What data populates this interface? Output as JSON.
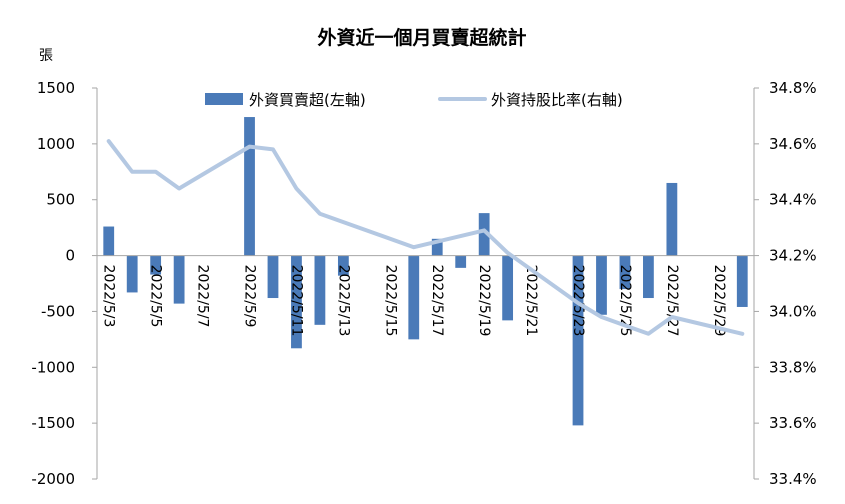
{
  "chart_data": {
    "type": "bar+line",
    "title": "外資近一個月買賣超統計",
    "y_left_unit": "張",
    "y_left_range": [
      -2000,
      1500
    ],
    "y_left_ticks": [
      "1500",
      "1000",
      "500",
      "0",
      "-500",
      "-1000",
      "-1500",
      "-2000"
    ],
    "y_right_range": [
      33.4,
      34.8
    ],
    "y_right_ticks": [
      "34.8%",
      "34.6%",
      "34.4%",
      "34.2%",
      "34.0%",
      "33.8%",
      "33.6%",
      "33.4%"
    ],
    "x_dates": [
      "2022/5/3",
      "2022/5/4",
      "2022/5/5",
      "2022/5/6",
      "2022/5/7",
      "2022/5/8",
      "2022/5/9",
      "2022/5/10",
      "2022/5/11",
      "2022/5/12",
      "2022/5/13",
      "2022/5/14",
      "2022/5/15",
      "2022/5/16",
      "2022/5/17",
      "2022/5/18",
      "2022/5/19",
      "2022/5/20",
      "2022/5/21",
      "2022/5/22",
      "2022/5/23",
      "2022/5/24",
      "2022/5/25",
      "2022/5/26",
      "2022/5/27",
      "2022/5/28",
      "2022/5/29",
      "2022/5/30"
    ],
    "x_tick_labels": [
      "2022/5/3",
      "2022/5/5",
      "2022/5/7",
      "2022/5/9",
      "2022/5/11",
      "2022/5/13",
      "2022/5/15",
      "2022/5/17",
      "2022/5/19",
      "2022/5/21",
      "2022/5/23",
      "2022/5/25",
      "2022/5/27",
      "2022/5/29"
    ],
    "series": [
      {
        "name": "外資買賣超(左軸)",
        "type": "bar",
        "axis": "left",
        "color": "#4a7ab8",
        "points": [
          {
            "date": "2022/5/3",
            "value": 260
          },
          {
            "date": "2022/5/4",
            "value": -330
          },
          {
            "date": "2022/5/5",
            "value": -170
          },
          {
            "date": "2022/5/6",
            "value": -430
          },
          {
            "date": "2022/5/9",
            "value": 1240
          },
          {
            "date": "2022/5/10",
            "value": -380
          },
          {
            "date": "2022/5/11",
            "value": -830
          },
          {
            "date": "2022/5/12",
            "value": -620
          },
          {
            "date": "2022/5/13",
            "value": -180
          },
          {
            "date": "2022/5/16",
            "value": -750
          },
          {
            "date": "2022/5/17",
            "value": 150
          },
          {
            "date": "2022/5/18",
            "value": -110
          },
          {
            "date": "2022/5/19",
            "value": 380
          },
          {
            "date": "2022/5/20",
            "value": -580
          },
          {
            "date": "2022/5/23",
            "value": -1520
          },
          {
            "date": "2022/5/24",
            "value": -530
          },
          {
            "date": "2022/5/25",
            "value": -300
          },
          {
            "date": "2022/5/26",
            "value": -380
          },
          {
            "date": "2022/5/27",
            "value": 650
          },
          {
            "date": "2022/5/30",
            "value": -460
          }
        ]
      },
      {
        "name": "外資持股比率(右軸)",
        "type": "line",
        "axis": "right",
        "color": "#b4c8e2",
        "points": [
          {
            "date": "2022/5/3",
            "value": 34.61
          },
          {
            "date": "2022/5/4",
            "value": 34.5
          },
          {
            "date": "2022/5/5",
            "value": 34.5
          },
          {
            "date": "2022/5/6",
            "value": 34.44
          },
          {
            "date": "2022/5/9",
            "value": 34.59
          },
          {
            "date": "2022/5/10",
            "value": 34.58
          },
          {
            "date": "2022/5/11",
            "value": 34.44
          },
          {
            "date": "2022/5/12",
            "value": 34.35
          },
          {
            "date": "2022/5/16",
            "value": 34.23
          },
          {
            "date": "2022/5/19",
            "value": 34.29
          },
          {
            "date": "2022/5/20",
            "value": 34.21
          },
          {
            "date": "2022/5/23",
            "value": 34.03
          },
          {
            "date": "2022/5/24",
            "value": 33.98
          },
          {
            "date": "2022/5/26",
            "value": 33.92
          },
          {
            "date": "2022/5/27",
            "value": 33.98
          },
          {
            "date": "2022/5/30",
            "value": 33.92
          }
        ]
      }
    ],
    "legend_position": "top",
    "grid": false
  }
}
